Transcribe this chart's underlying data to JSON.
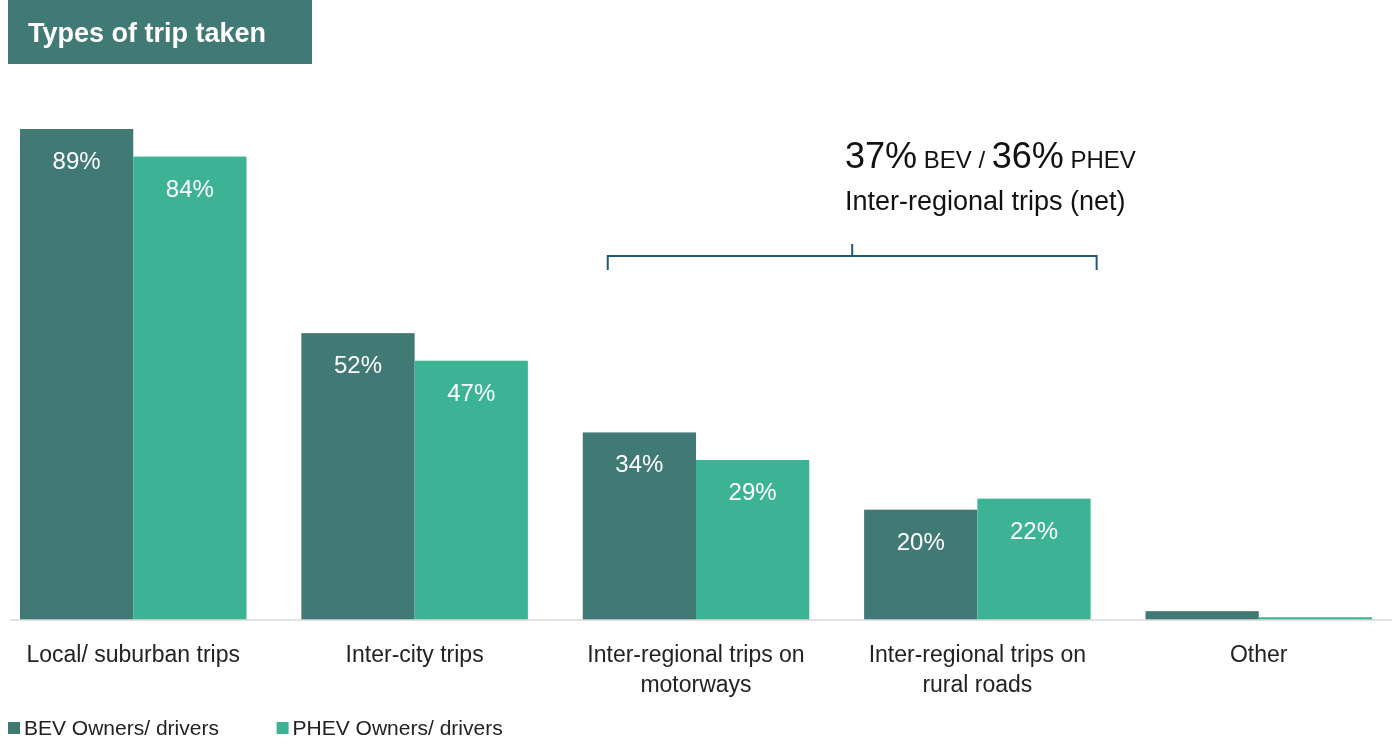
{
  "chart_data": {
    "type": "bar",
    "title": "Types of trip taken",
    "categories": [
      "Local/ suburban trips",
      "Inter-city trips",
      "Inter-regional trips on motorways",
      "Inter-regional trips on rural roads",
      "Other"
    ],
    "series": [
      {
        "name": "BEV Owners/ drivers",
        "color": "#417a74",
        "values": [
          89,
          52,
          34,
          20,
          1.6
        ],
        "value_labels": [
          "89%",
          "52%",
          "34%",
          "20%",
          null
        ]
      },
      {
        "name": "PHEV Owners/ drivers",
        "color": "#3bb394",
        "values": [
          84,
          47,
          29,
          22,
          0.5
        ],
        "value_labels": [
          "84%",
          "47%",
          "29%",
          "22%",
          null
        ]
      }
    ],
    "annotations": [
      "37% BEV / 36% PHEV",
      "Inter-regional trips (net)"
    ],
    "legend": "bottom left"
  }
}
